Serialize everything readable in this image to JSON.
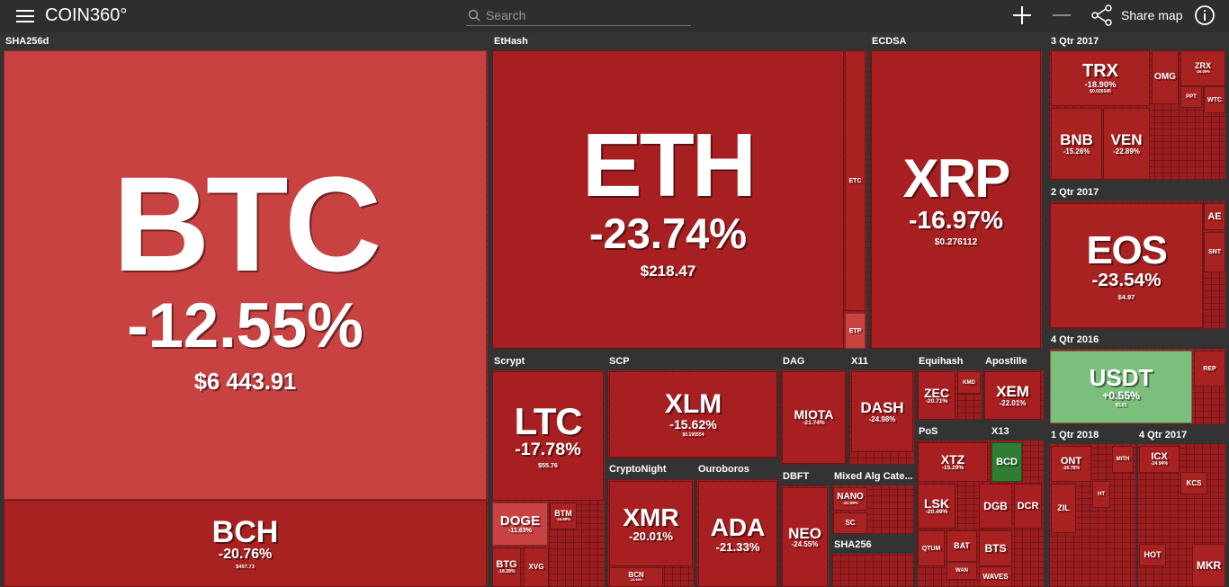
{
  "header": {
    "logo": "COIN360°",
    "search": "Search",
    "share": "Share map"
  },
  "groups": [
    {
      "label": "SHA256d",
      "tiles": [
        {
          "symbol": "BTC",
          "change": "-12.55%",
          "price": "$6 443.91"
        },
        {
          "symbol": "BCH",
          "change": "-20.76%",
          "price": "$497.73"
        }
      ]
    },
    {
      "label": "EtHash",
      "tiles": [
        {
          "symbol": "ETH",
          "change": "-23.74%",
          "price": "$218.47"
        },
        {
          "symbol": "ETC"
        },
        {
          "symbol": "ETP"
        }
      ]
    },
    {
      "label": "ECDSA",
      "tiles": [
        {
          "symbol": "XRP",
          "change": "-16.97%",
          "price": "$0.276112"
        }
      ]
    },
    {
      "label": "3 Qtr 2017",
      "tiles": [
        {
          "symbol": "TRX",
          "change": "-18.90%",
          "price": "$0.026545"
        },
        {
          "symbol": "BNB",
          "change": "-15.26%"
        },
        {
          "symbol": "VEN",
          "change": "-22.89%"
        },
        {
          "symbol": "OMG"
        },
        {
          "symbol": "ZRX",
          "change": "-26.05%"
        },
        {
          "symbol": "WTC"
        },
        {
          "symbol": "PPT"
        }
      ]
    },
    {
      "label": "2 Qtr 2017",
      "tiles": [
        {
          "symbol": "EOS",
          "change": "-23.54%",
          "price": "$4.97"
        },
        {
          "symbol": "AE"
        },
        {
          "symbol": "SNT"
        }
      ]
    },
    {
      "label": "4 Qtr 2016",
      "tiles": [
        {
          "symbol": "USDT",
          "change": "+0.55%",
          "price": "$1.01"
        },
        {
          "symbol": "REP"
        }
      ]
    },
    {
      "label": "1 Qtr 2018",
      "tiles": [
        {
          "symbol": "ONT",
          "change": "-26.78%"
        },
        {
          "symbol": "ZIL"
        },
        {
          "symbol": "HT"
        },
        {
          "symbol": "MITH"
        }
      ]
    },
    {
      "label": "4 Qtr 2017",
      "tiles": [
        {
          "symbol": "ICX",
          "change": "-24.94%"
        },
        {
          "symbol": "KCS"
        },
        {
          "symbol": "HOT"
        },
        {
          "symbol": "MKR"
        }
      ]
    },
    {
      "label": "Scrypt",
      "tiles": [
        {
          "symbol": "LTC",
          "change": "-17.78%",
          "price": "$55.76"
        },
        {
          "symbol": "DOGE",
          "change": "-11.63%"
        },
        {
          "symbol": "BTM",
          "change": "-24.89%"
        },
        {
          "symbol": "BTG",
          "change": "-18.28%"
        },
        {
          "symbol": "XVG"
        }
      ]
    },
    {
      "label": "SCP",
      "tiles": [
        {
          "symbol": "XLM",
          "change": "-15.62%",
          "price": "$0.195554"
        }
      ]
    },
    {
      "label": "CryptoNight",
      "tiles": [
        {
          "symbol": "XMR",
          "change": "-20.01%"
        },
        {
          "symbol": "BCN",
          "change": "-26.99%"
        }
      ]
    },
    {
      "label": "Ouroboros",
      "tiles": [
        {
          "symbol": "ADA",
          "change": "-21.33%"
        }
      ]
    },
    {
      "label": "DAG",
      "tiles": [
        {
          "symbol": "MIOTA",
          "change": "-21.74%"
        }
      ]
    },
    {
      "label": "X11",
      "tiles": [
        {
          "symbol": "DASH",
          "change": "-24.98%"
        }
      ]
    },
    {
      "label": "DBFT",
      "tiles": [
        {
          "symbol": "NEO",
          "change": "-24.55%"
        }
      ]
    },
    {
      "label": "Mixed Alg Cate...",
      "tiles": [
        {
          "symbol": "NANO",
          "change": "-22.99%"
        },
        {
          "symbol": "SC"
        }
      ]
    },
    {
      "label": "SHA256",
      "tiles": []
    },
    {
      "label": "Equihash",
      "tiles": [
        {
          "symbol": "ZEC",
          "change": "-20.71%"
        },
        {
          "symbol": "KMD"
        }
      ]
    },
    {
      "label": "Apostille",
      "tiles": [
        {
          "symbol": "XEM",
          "change": "-22.01%"
        }
      ]
    },
    {
      "label": "PoS",
      "tiles": [
        {
          "symbol": "XTZ",
          "change": "-15.29%"
        },
        {
          "symbol": "LSK",
          "change": "-20.49%"
        },
        {
          "symbol": "QTUM"
        },
        {
          "symbol": "BAT"
        },
        {
          "symbol": "WAN"
        },
        {
          "symbol": "DGB"
        },
        {
          "symbol": "DCR"
        },
        {
          "symbol": "BTS"
        },
        {
          "symbol": "WAVES"
        }
      ]
    },
    {
      "label": "X13",
      "tiles": [
        {
          "symbol": "BCD"
        }
      ]
    }
  ]
}
